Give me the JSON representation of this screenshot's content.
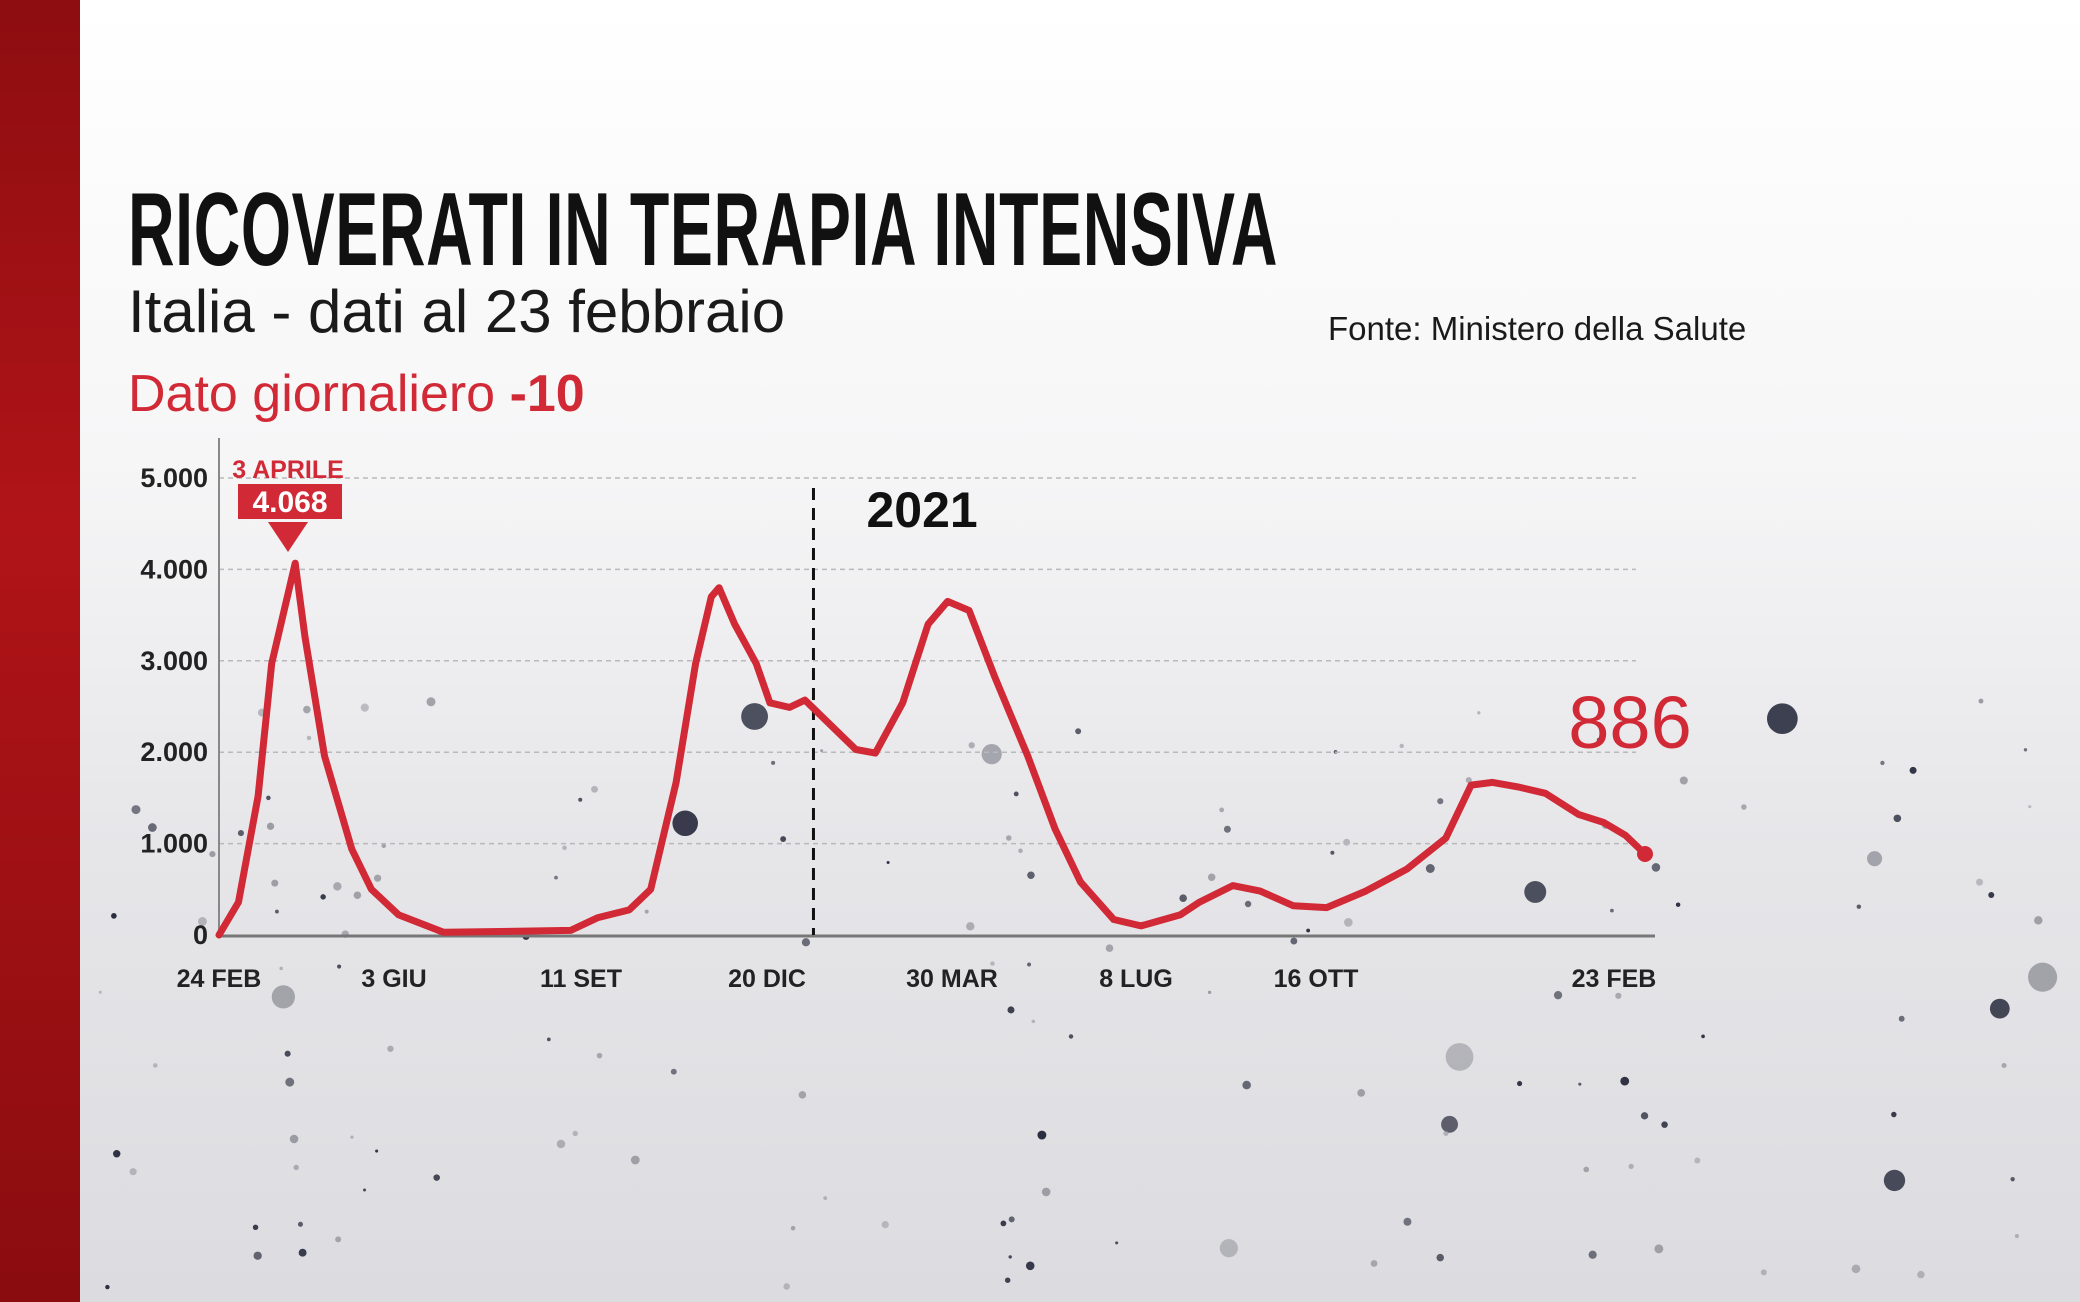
{
  "title": "RICOVERATI IN TERAPIA INTENSIVA",
  "subtitle": "Italia - dati al 23 febbraio",
  "daily": {
    "label": "Dato giornaliero",
    "value": "-10"
  },
  "source": "Fonte: Ministero della Salute",
  "colors": {
    "accent": "#d12a36",
    "strip": "#a51216",
    "text": "#111111"
  },
  "chart_data": {
    "type": "line",
    "title": "RICOVERATI IN TERAPIA INTENSIVA",
    "xlabel": "",
    "ylabel": "",
    "ylim": [
      0,
      5000
    ],
    "xlim": [
      "2020-02-24",
      "2022-02-23"
    ],
    "grid": true,
    "y_ticks": [
      "0",
      "1.000",
      "2.000",
      "3.000",
      "4.000",
      "5.000"
    ],
    "y_tick_values": [
      0,
      1000,
      2000,
      3000,
      4000,
      5000
    ],
    "x_ticks": [
      "24 FEB",
      "3 GIU",
      "11 SET",
      "20 DIC",
      "30 MAR",
      "8 LUG",
      "16 OTT",
      "23 FEB"
    ],
    "x_tick_dates": [
      "2020-02-24",
      "2020-06-03",
      "2020-09-11",
      "2020-12-20",
      "2021-03-30",
      "2021-07-08",
      "2021-10-16",
      "2022-02-23"
    ],
    "year_marker": {
      "date": "2021-01-01",
      "label": "2021"
    },
    "peak_annotation": {
      "date_label": "3 APRILE",
      "value_label": "4.068",
      "date": "2020-04-03",
      "value": 4068
    },
    "last_value_label": "886",
    "series": [
      {
        "x": [
          "2020-02-24",
          "2020-03-05",
          "2020-03-15",
          "2020-03-22",
          "2020-04-03",
          "2020-04-08",
          "2020-04-18",
          "2020-05-02",
          "2020-05-12",
          "2020-05-26",
          "2020-06-18",
          "2020-08-22",
          "2020-09-05",
          "2020-09-21",
          "2020-10-02",
          "2020-10-15",
          "2020-10-25",
          "2020-11-02",
          "2020-11-06",
          "2020-11-14",
          "2020-11-25",
          "2020-12-02",
          "2020-12-12",
          "2020-12-20",
          "2021-01-01",
          "2021-01-15",
          "2021-01-25",
          "2021-02-08",
          "2021-02-21",
          "2021-03-03",
          "2021-03-14",
          "2021-03-27",
          "2021-04-13",
          "2021-04-27",
          "2021-05-10",
          "2021-05-27",
          "2021-06-10",
          "2021-06-30",
          "2021-07-10",
          "2021-07-27",
          "2021-08-10",
          "2021-08-27",
          "2021-09-13",
          "2021-10-03",
          "2021-10-24",
          "2021-11-13",
          "2021-11-26",
          "2021-12-07",
          "2021-12-20",
          "2022-01-03",
          "2022-01-20",
          "2022-02-02",
          "2022-02-13",
          "2022-02-23"
        ],
        "values": [
          0,
          360,
          1520,
          2970,
          4068,
          3260,
          1960,
          940,
          500,
          220,
          30,
          50,
          190,
          275,
          500,
          1670,
          2970,
          3700,
          3800,
          3400,
          2970,
          2540,
          2490,
          2570,
          2320,
          2030,
          1990,
          2540,
          3400,
          3650,
          3550,
          2830,
          1960,
          1160,
          580,
          170,
          100,
          220,
          360,
          540,
          480,
          320,
          300,
          480,
          720,
          1060,
          1640,
          1670,
          1620,
          1550,
          1320,
          1230,
          1090,
          886
        ]
      }
    ]
  }
}
